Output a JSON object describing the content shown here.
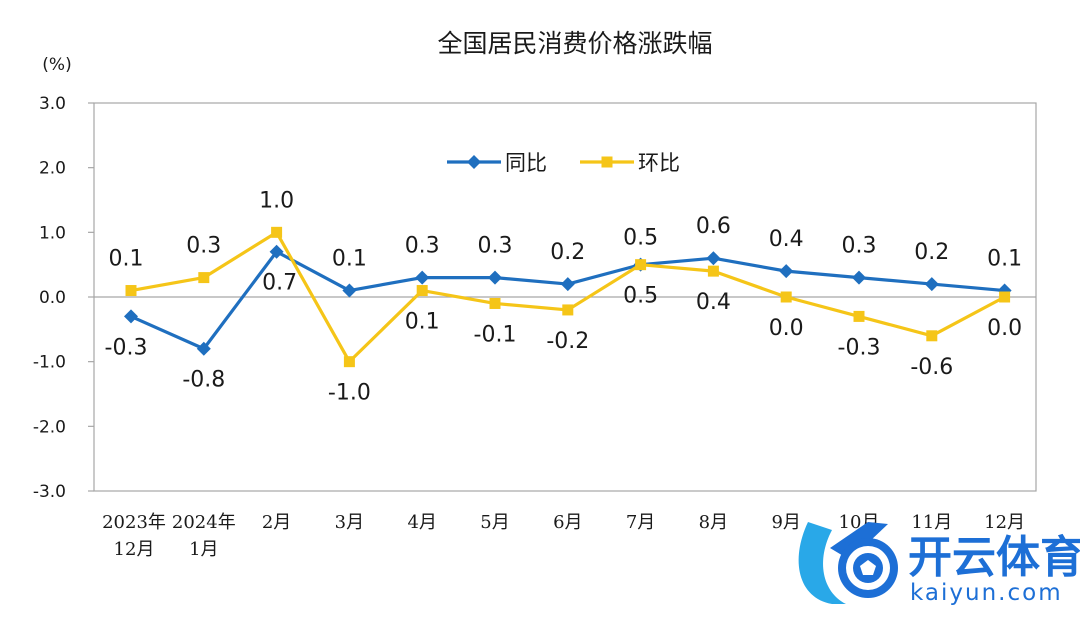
{
  "chart_data": {
    "type": "line",
    "title": "全国居民消费价格涨跌幅",
    "unit": "(%)",
    "ylim": [
      -3.0,
      3.0
    ],
    "yticks": [
      "3.0",
      "2.0",
      "1.0",
      "0.0",
      "-1.0",
      "-2.0",
      "-3.0"
    ],
    "ytick_values": [
      3,
      2,
      1,
      0,
      -1,
      -2,
      -3
    ],
    "categories": [
      [
        "2023年",
        "12月"
      ],
      [
        "2024年",
        "1月"
      ],
      [
        "2月"
      ],
      [
        "3月"
      ],
      [
        "4月"
      ],
      [
        "5月"
      ],
      [
        "6月"
      ],
      [
        "7月"
      ],
      [
        "8月"
      ],
      [
        "9月"
      ],
      [
        "10月"
      ],
      [
        "11月"
      ],
      [
        "12月"
      ]
    ],
    "grid": false,
    "legend_position": "top-center",
    "series": [
      {
        "name": "同比",
        "color": "#1f6fbf",
        "marker": "diamond",
        "values": [
          -0.3,
          -0.8,
          0.7,
          0.1,
          0.3,
          0.3,
          0.2,
          0.5,
          0.6,
          0.4,
          0.3,
          0.2,
          0.1
        ],
        "labels": [
          "-0.3",
          "-0.8",
          "0.7",
          "0.1",
          "0.3",
          "0.3",
          "0.2",
          "0.5",
          "0.6",
          "0.4",
          "0.3",
          "0.2",
          "0.1"
        ]
      },
      {
        "name": "环比",
        "color": "#f5c518",
        "marker": "square",
        "values": [
          0.1,
          0.3,
          1.0,
          -1.0,
          0.1,
          -0.1,
          -0.2,
          0.5,
          0.4,
          0.0,
          -0.3,
          -0.6,
          0.0
        ],
        "labels": [
          "0.1",
          "0.3",
          "1.0",
          "-1.0",
          "0.1",
          "-0.1",
          "-0.2",
          "0.5",
          "0.4",
          "0.0",
          "-0.3",
          "-0.6",
          "0.0"
        ]
      }
    ]
  },
  "watermark": {
    "name": "开云体育",
    "domain": "kaiyun.com"
  }
}
